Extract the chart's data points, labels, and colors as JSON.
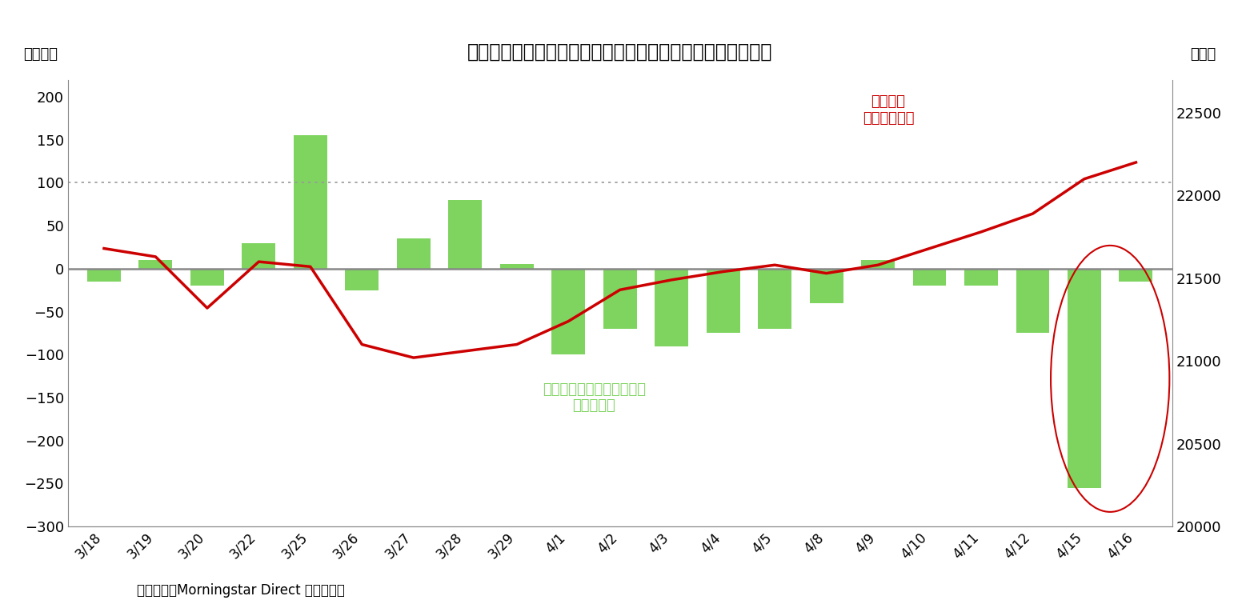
{
  "title": "》図表１》 インデックス・ファンドの日次推計資金流出入",
  "title_full": "》図表１》　インデックス・ファンドの日次推計資金流出入",
  "ylabel_left": "（億円）",
  "ylabel_right": "（円）",
  "source": "（資料）　Morningstar Direct より作成。",
  "dates": [
    "3/18",
    "3/19",
    "3/20",
    "3/22",
    "3/25",
    "3/26",
    "3/27",
    "3/28",
    "3/29",
    "4/1",
    "4/2",
    "4/3",
    "4/4",
    "4/5",
    "4/8",
    "4/9",
    "4/10",
    "4/11",
    "4/12",
    "4/15",
    "4/16"
  ],
  "bar_values": [
    -15,
    10,
    -20,
    30,
    155,
    -25,
    35,
    80,
    5,
    -100,
    -70,
    -90,
    -75,
    -70,
    -40,
    10,
    -20,
    -20,
    -75,
    -255,
    -15
  ],
  "line_values": [
    21680,
    21630,
    21320,
    21600,
    21570,
    21100,
    21020,
    21060,
    21100,
    21240,
    21430,
    21490,
    21540,
    21580,
    21530,
    21580,
    21680,
    21780,
    21890,
    22100,
    22200
  ],
  "bar_color": "#7FD460",
  "line_color": "#CC0000",
  "hline_value": 100,
  "ylim_left": [
    -300,
    220
  ],
  "ylim_right": [
    20000,
    22700
  ],
  "yticks_left": [
    -300,
    -250,
    -200,
    -150,
    -100,
    -50,
    0,
    50,
    100,
    150,
    200
  ],
  "yticks_right": [
    20000,
    20500,
    21000,
    21500,
    22000,
    22500
  ],
  "annotation_bar": "インデックス・ファンドの\n資金流出入",
  "annotation_line": "日経平均\n株価（右軸）",
  "background_color": "#ffffff",
  "ellipse_color": "#CC0000"
}
